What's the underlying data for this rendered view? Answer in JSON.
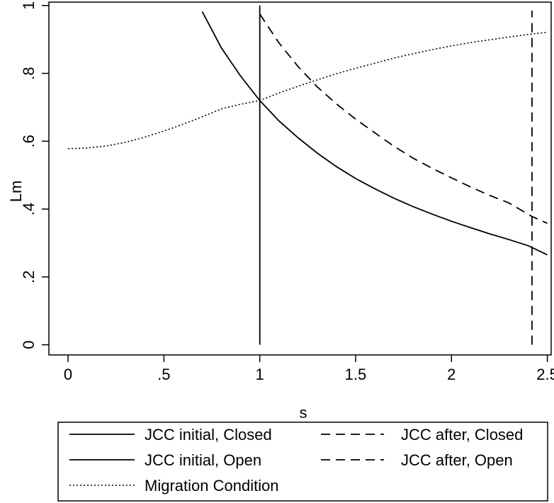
{
  "chart_data": {
    "type": "line",
    "xlabel": "s",
    "ylabel": "Lm",
    "xlim": [
      -0.1,
      2.52
    ],
    "ylim": [
      -0.03,
      1.01
    ],
    "x_ticks": [
      0,
      0.5,
      1,
      1.5,
      2,
      2.5
    ],
    "x_tick_labels": [
      "0",
      ".5",
      "1",
      "1.5",
      "2",
      "2.5"
    ],
    "y_ticks": [
      0,
      0.2,
      0.4,
      0.6,
      0.8,
      1
    ],
    "y_tick_labels": [
      "0",
      ".2",
      ".4",
      ".6",
      ".8",
      "1"
    ],
    "grid": false,
    "legend_position": "bottom",
    "series": [
      {
        "name": "JCC initial, Closed",
        "style": "solid",
        "x": [
          1,
          1
        ],
        "y": [
          0,
          1
        ]
      },
      {
        "name": "JCC after, Closed",
        "style": "dashed",
        "x": [
          2.42,
          2.42
        ],
        "y": [
          0,
          0.985
        ]
      },
      {
        "name": "JCC initial, Open",
        "style": "solid",
        "x": [
          0.7,
          0.8,
          0.9,
          1.0,
          1.1,
          1.2,
          1.3,
          1.4,
          1.5,
          1.6,
          1.7,
          1.8,
          1.9,
          2.0,
          2.1,
          2.2,
          2.3,
          2.4,
          2.5
        ],
        "y": [
          0.982,
          0.875,
          0.792,
          0.72,
          0.66,
          0.61,
          0.565,
          0.525,
          0.49,
          0.46,
          0.432,
          0.407,
          0.385,
          0.364,
          0.345,
          0.327,
          0.31,
          0.292,
          0.265
        ]
      },
      {
        "name": "JCC after, Open",
        "style": "dashed",
        "x": [
          1.0,
          1.1,
          1.2,
          1.3,
          1.4,
          1.5,
          1.6,
          1.7,
          1.8,
          1.9,
          2.0,
          2.1,
          2.2,
          2.3,
          2.42,
          2.5
        ],
        "y": [
          0.975,
          0.89,
          0.82,
          0.76,
          0.71,
          0.665,
          0.625,
          0.585,
          0.55,
          0.52,
          0.492,
          0.465,
          0.44,
          0.418,
          0.378,
          0.358
        ]
      },
      {
        "name": "Migration Condition",
        "style": "dotted",
        "x": [
          0,
          0.1,
          0.2,
          0.3,
          0.4,
          0.5,
          0.6,
          0.7,
          0.8,
          0.9,
          1.0,
          1.1,
          1.2,
          1.3,
          1.4,
          1.5,
          1.6,
          1.7,
          1.8,
          1.9,
          2.0,
          2.1,
          2.2,
          2.3,
          2.4,
          2.5
        ],
        "y": [
          0.578,
          0.58,
          0.586,
          0.597,
          0.612,
          0.63,
          0.65,
          0.672,
          0.695,
          0.709,
          0.72,
          0.742,
          0.762,
          0.781,
          0.799,
          0.815,
          0.83,
          0.845,
          0.858,
          0.87,
          0.881,
          0.891,
          0.899,
          0.907,
          0.915,
          0.921
        ]
      }
    ]
  }
}
